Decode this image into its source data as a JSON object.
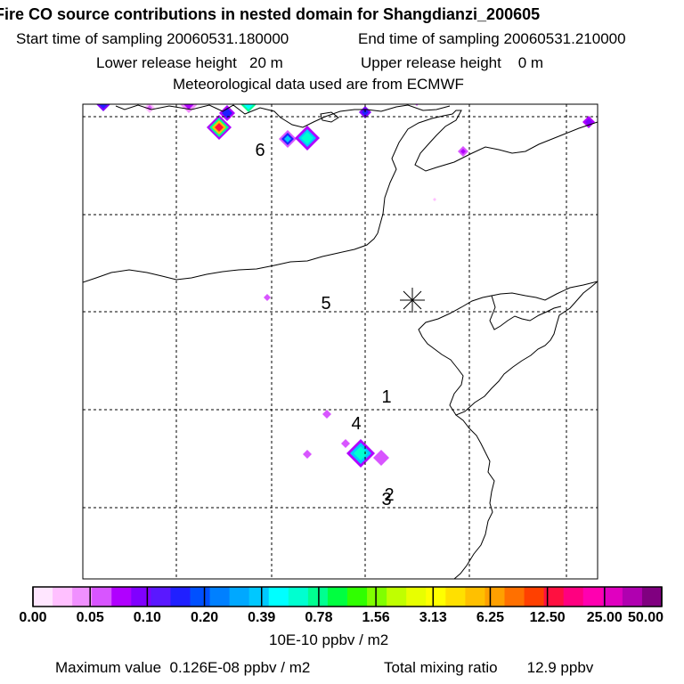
{
  "header": {
    "title": "Fire CO source contributions in nested domain for Shangdianzi_200605",
    "start_label": "Start time of sampling",
    "start_value": "20060531.180000",
    "end_label": "End time of sampling",
    "end_value": "20060531.210000",
    "lower_label": "Lower release height",
    "lower_value": "20 m",
    "upper_label": "Upper release height",
    "upper_value": "0 m",
    "met_line": "Meteorological data used are from ECMWF"
  },
  "chart_data": {
    "type": "heatmap",
    "title": "Fire CO source contributions in nested domain for Shangdianzi_200605",
    "units": "10E-10 ppbv / m2",
    "grid": true,
    "colorbar": {
      "tick_labels": [
        "0.00",
        "0.05",
        "0.10",
        "0.20",
        "0.39",
        "0.78",
        "1.56",
        "3.13",
        "6.25",
        "12.50",
        "25.00",
        "50.00"
      ],
      "colors": [
        "#ffe6ff",
        "#ffc0ff",
        "#f090ff",
        "#d855ff",
        "#b000ff",
        "#8000ff",
        "#5a18ff",
        "#2020ff",
        "#0050ff",
        "#0080ff",
        "#00a8ff",
        "#00c8ff",
        "#00ffff",
        "#00ffd0",
        "#00ff90",
        "#00ff40",
        "#30ff00",
        "#80ff00",
        "#c0ff00",
        "#e8ff00",
        "#ffff00",
        "#ffe000",
        "#ffc000",
        "#ffa000",
        "#ff7000",
        "#ff4000",
        "#ff1040",
        "#ff0080",
        "#ff00b0",
        "#e000c0",
        "#b000b0",
        "#800080"
      ]
    },
    "markers": [
      {
        "label": "1"
      },
      {
        "label": "2"
      },
      {
        "label": "3"
      },
      {
        "label": "4"
      },
      {
        "label": "5"
      },
      {
        "label": "6"
      }
    ],
    "receptor_symbol": "star",
    "max_value_label": "Maximum value",
    "max_value": "0.126E-08 ppbv / m2",
    "total_label": "Total mixing ratio",
    "total_value": "12.9 ppbv"
  }
}
